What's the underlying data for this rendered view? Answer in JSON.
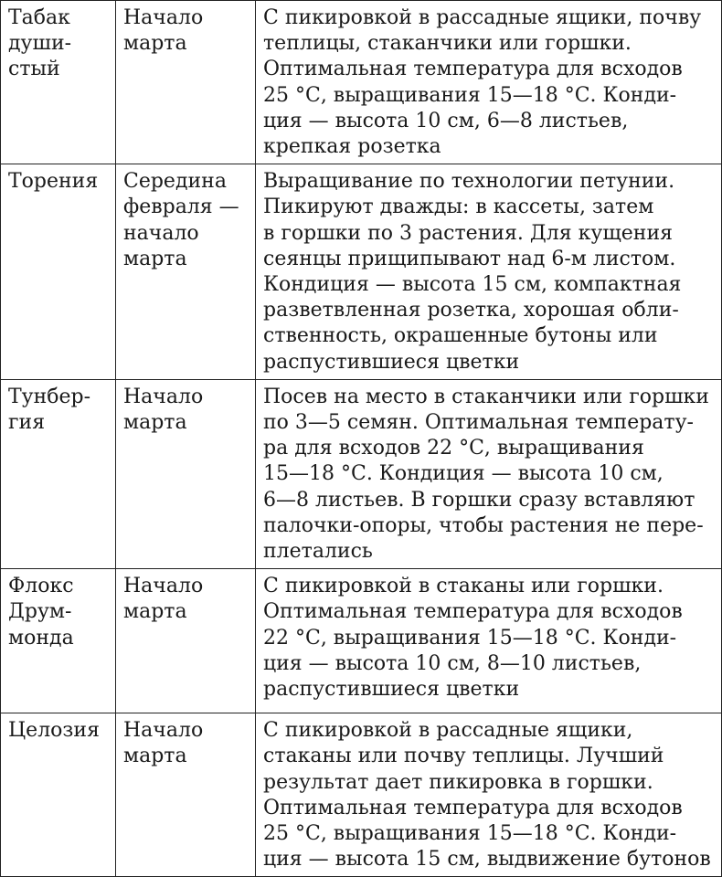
{
  "rows": [
    {
      "plant": "Табак\nдуши-\nстый",
      "sowing": "Начало\nмарта",
      "notes": "С пикировкой в рассадные ящики, почву\nтеплицы, стаканчики или горшки.\nОптимальная температура для всходов\n25 °С, выращивания 15—18 °С. Конди-\nция — высота 10 см, 6—8 листьев,\nкрепкая розетка"
    },
    {
      "plant": "Торения",
      "sowing": "Середина\nфевраля —\nначало\nмарта",
      "notes": "Выращивание по технологии петунии.\nПикируют дважды: в кассеты, затем\nв горшки по 3 растения. Для кущения\nсеянцы прищипывают над 6-м листом.\nКондиция — высота 15 см, компактная\nразветвленная розетка, хорошая обли-\nственность, окрашенные бутоны или\nраспустившиеся цветки"
    },
    {
      "plant": "Тунбер-\nгия",
      "sowing": "Начало\nмарта",
      "notes": "Посев на место в стаканчики или горшки\nпо 3—5 семян. Оптимальная температу-\nра для всходов 22 °С, выращивания\n15—18 °С. Кондиция — высота 10 см,\n6—8 листьев. В горшки сразу вставляют\nпалочки-опоры, чтобы растения не пере-\nплетались"
    },
    {
      "plant": "Флокс\nДрум-\nмонда",
      "sowing": "Начало\nмарта",
      "notes": "С пикировкой в стаканы или горшки.\nОптимальная температура для всходов\n22 °С, выращивания 15—18 °С. Конди-\nция — высота 10 см, 8—10 листьев,\nраспустившиеся цветки"
    },
    {
      "plant": "Целозия",
      "sowing": "Начало\nмарта",
      "notes": "С пикировкой в рассадные ящики,\nстаканы или почву теплицы. Лучший\nрезультат дает пикировка в горшки.\nОптимальная температура для всходов\n25 °С, выращивания 15—18 °С. Конди-\nция — высота 15 см, выдвижение бутонов"
    }
  ]
}
